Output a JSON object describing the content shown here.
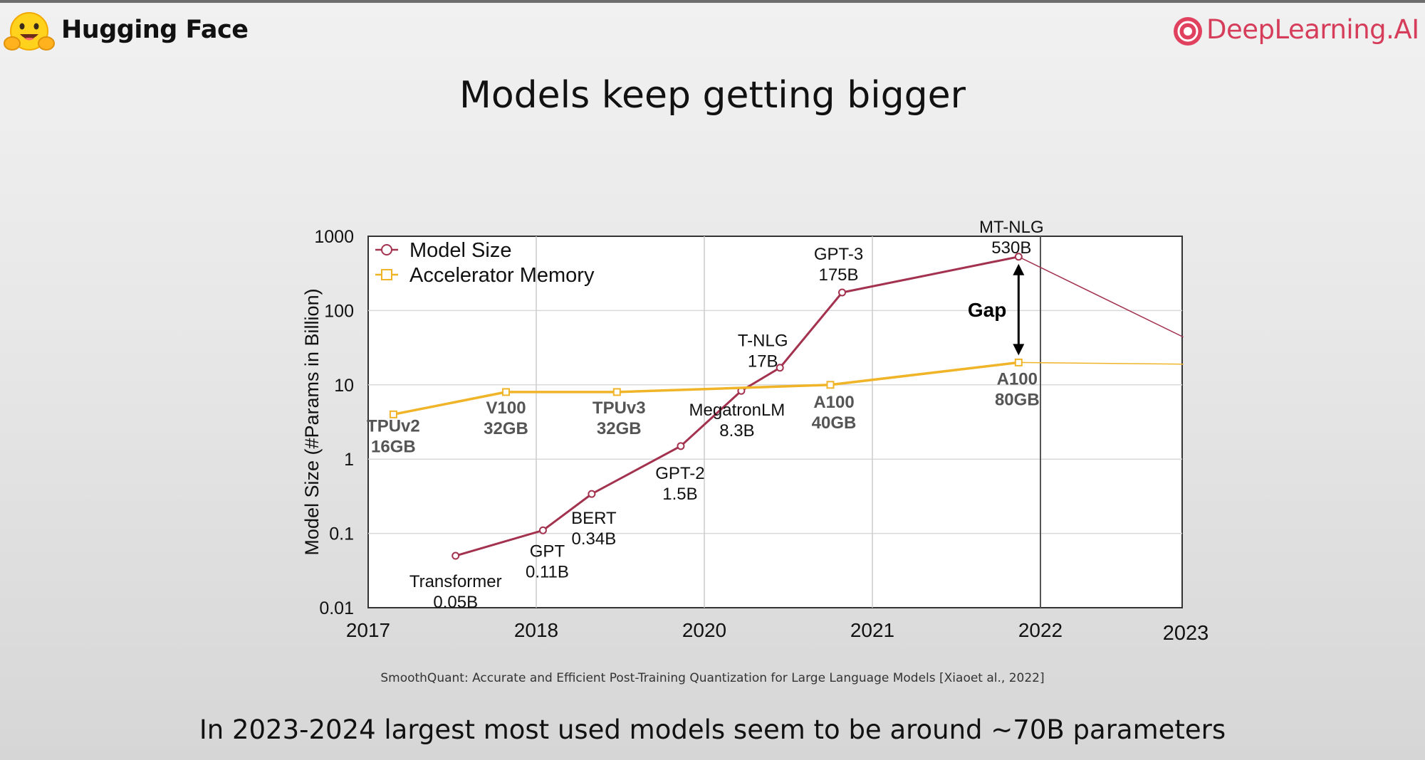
{
  "header": {
    "brand_left": "Hugging Face",
    "brand_left_icon": "hugging-face-emoji-icon",
    "brand_right": "DeepLearning.AI",
    "brand_right_icon": "deeplearning-ai-logo-icon"
  },
  "slide": {
    "title": "Models keep getting bigger",
    "citation": "SmoothQuant: Accurate and Efficient Post-Training Quantization for Large Language Models [Xiaoet al., 2022]",
    "footer": "In 2023-2024 largest most used models seem to be around ~70B parameters"
  },
  "chart_data": {
    "type": "line",
    "title": "",
    "xlabel": "",
    "ylabel": "Model Size (#Params in Billion)",
    "yscale": "log",
    "ylim": [
      0.01,
      1000
    ],
    "y_ticks": [
      "0.01",
      "0.1",
      "1",
      "10",
      "100",
      "1000"
    ],
    "x_ticks": [
      "2017",
      "2018",
      "2020",
      "2021",
      "2022",
      "2023"
    ],
    "grid": true,
    "legend_position": "top-left",
    "gap_label": "Gap",
    "series": [
      {
        "name": "Model Size",
        "color": "#a3324f",
        "marker": "circle",
        "points": [
          {
            "x": 0.52,
            "y": 0.05,
            "label": [
              "Transformer",
              "0.05B"
            ]
          },
          {
            "x": 1.04,
            "y": 0.11,
            "label": [
              "GPT",
              "0.11B"
            ]
          },
          {
            "x": 1.33,
            "y": 0.34,
            "label": [
              "BERT",
              "0.34B"
            ]
          },
          {
            "x": 1.86,
            "y": 1.5,
            "label": [
              "GPT-2",
              "1.5B"
            ]
          },
          {
            "x": 2.22,
            "y": 8.3,
            "label": [
              "MegatronLM",
              "8.3B"
            ]
          },
          {
            "x": 2.45,
            "y": 17,
            "label": [
              "T-NLG",
              "17B"
            ]
          },
          {
            "x": 2.82,
            "y": 175,
            "label": [
              "GPT-3",
              "175B"
            ]
          },
          {
            "x": 3.87,
            "y": 530,
            "label": [
              "MT-NLG",
              "530B"
            ]
          }
        ],
        "trend_end": {
          "x": 4.85,
          "y": 44
        }
      },
      {
        "name": "Accelerator Memory",
        "color": "#f0b429",
        "marker": "square",
        "points": [
          {
            "x": 0.15,
            "y": 4,
            "label": [
              "TPUv2",
              "16GB"
            ]
          },
          {
            "x": 0.82,
            "y": 8,
            "label": [
              "V100",
              "32GB"
            ]
          },
          {
            "x": 1.48,
            "y": 8,
            "label": [
              "TPUv3",
              "32GB"
            ]
          },
          {
            "x": 2.75,
            "y": 10,
            "label": [
              "A100",
              "40GB"
            ]
          },
          {
            "x": 3.87,
            "y": 20,
            "label": [
              "A100",
              "80GB"
            ]
          }
        ],
        "trend_end": {
          "x": 4.85,
          "y": 19
        }
      }
    ]
  }
}
